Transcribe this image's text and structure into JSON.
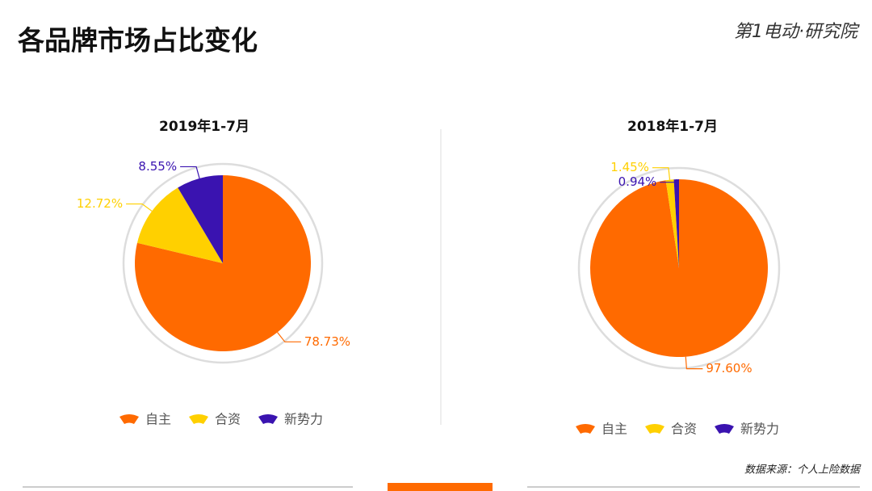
{
  "header": {
    "title": "各品牌市场占比变化",
    "logo": "第1电动·研究院"
  },
  "source": "数据来源：个人上险数据",
  "chart_data": [
    {
      "type": "pie",
      "title": "2019年1-7月",
      "categories": [
        "自主",
        "合资",
        "新势力"
      ],
      "values": [
        78.73,
        12.72,
        8.55
      ],
      "value_labels": [
        "78.73%",
        "12.72%",
        "8.55%"
      ],
      "colors": [
        "#ff6a00",
        "#ffd000",
        "#3a13b0"
      ]
    },
    {
      "type": "pie",
      "title": "2018年1-7月",
      "categories": [
        "自主",
        "合资",
        "新势力"
      ],
      "values": [
        97.6,
        1.45,
        0.94
      ],
      "value_labels": [
        "97.60%",
        "1.45%",
        "0.94%"
      ],
      "colors": [
        "#ff6a00",
        "#ffd000",
        "#3a13b0"
      ]
    }
  ]
}
